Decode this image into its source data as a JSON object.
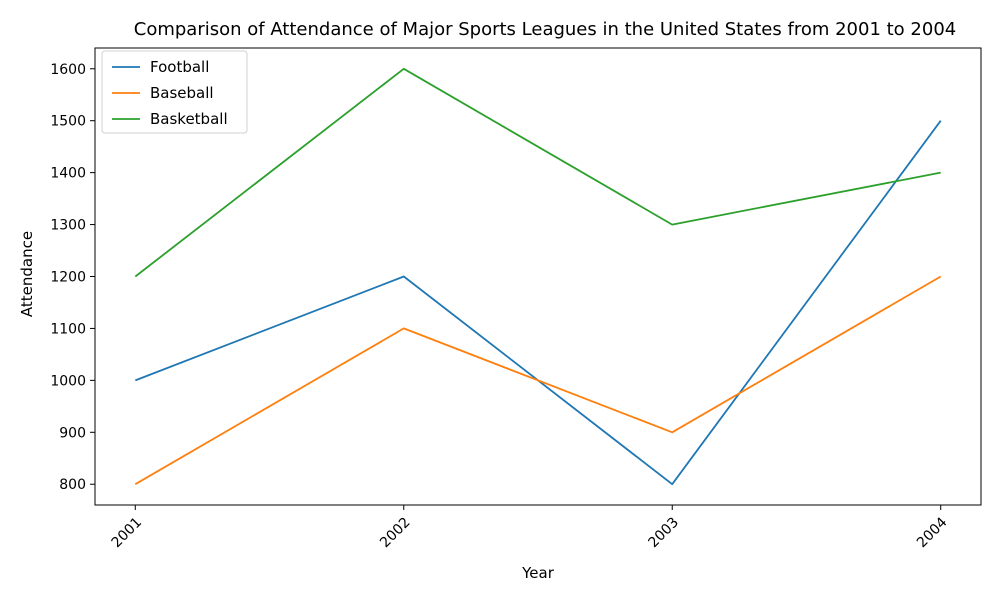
{
  "chart_data": {
    "type": "line",
    "title": "Comparison of Attendance of Major Sports Leagues in the United States from 2001 to 2004",
    "xlabel": "Year",
    "ylabel": "Attendance",
    "categories": [
      "2001",
      "2002",
      "2003",
      "2004"
    ],
    "ylim": [
      760,
      1640
    ],
    "yticks": [
      800,
      900,
      1000,
      1100,
      1200,
      1300,
      1400,
      1500,
      1600
    ],
    "grid": false,
    "legend_position": "top-left",
    "series": [
      {
        "name": "Football",
        "color": "#1f77b4",
        "values": [
          1000,
          1200,
          800,
          1500
        ]
      },
      {
        "name": "Baseball",
        "color": "#ff7f0e",
        "values": [
          800,
          1100,
          900,
          1200
        ]
      },
      {
        "name": "Basketball",
        "color": "#2ca02c",
        "values": [
          1200,
          1600,
          1300,
          1400
        ]
      }
    ]
  }
}
